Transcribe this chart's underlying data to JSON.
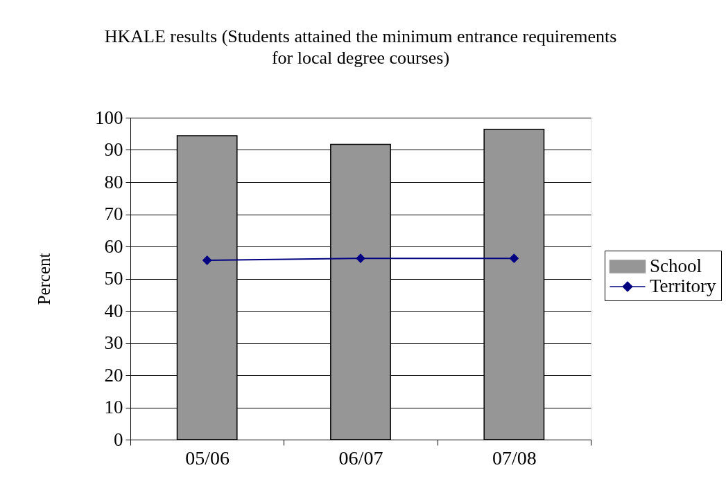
{
  "chart_data": {
    "type": "bar",
    "title": "HKALE results (Students attained the minimum entrance requirements for local degree courses)",
    "ylabel": "Percent",
    "categories": [
      "05/06",
      "06/07",
      "07/08"
    ],
    "series": [
      {
        "name": "School",
        "color": "#969696",
        "values": [
          94.4,
          91.7,
          96.4
        ]
      },
      {
        "name": "Territory",
        "type": "line",
        "color": "#000080",
        "marker": "diamond",
        "line_style": "solid",
        "values": [
          55.7,
          56.3,
          56.3
        ]
      }
    ],
    "ylim": [
      0,
      100
    ],
    "yticks": [
      0,
      10,
      20,
      30,
      40,
      50,
      60,
      70,
      80,
      90,
      100
    ],
    "grid": "y",
    "legend": "right"
  }
}
